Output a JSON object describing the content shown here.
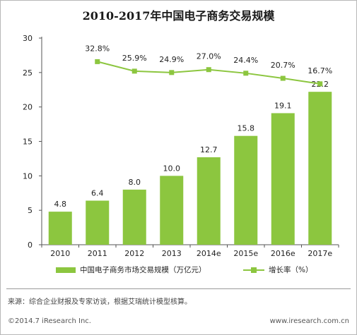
{
  "title": "2010-2017年中国电子商务交易规模",
  "source": "来源：综合企业财报及专家访谈，根据艾瑞统计模型核算。",
  "copyright": "©2014.7 iResearch Inc.",
  "website": "www.iresearch.com.cn",
  "colors": {
    "accent": "#8cc63f",
    "axis": "#555555"
  },
  "chart_data": {
    "type": "bar",
    "title": "2010-2017年中国电子商务交易规模",
    "categories": [
      "2010",
      "2011",
      "2012",
      "2013",
      "2014e",
      "2015e",
      "2016e",
      "2017e"
    ],
    "ylim": [
      0,
      30
    ],
    "yticks": [
      "0",
      "5",
      "10",
      "15",
      "20",
      "25",
      "30"
    ],
    "grid": false,
    "legend_position": "bottom",
    "series": [
      {
        "name": "中国电子商务市场交易规模（万亿元）",
        "type": "bar",
        "values": [
          4.8,
          6.4,
          8.0,
          10.0,
          12.7,
          15.8,
          19.1,
          22.2
        ],
        "labels": [
          "4.8",
          "6.4",
          "8.0",
          "10.0",
          "12.7",
          "15.8",
          "19.1",
          "22.2"
        ]
      },
      {
        "name": "增长率（%）",
        "type": "line",
        "values": [
          null,
          32.8,
          25.9,
          24.9,
          27.0,
          24.4,
          20.7,
          16.7
        ],
        "labels": [
          "",
          "32.8%",
          "25.9%",
          "24.9%",
          "27.0%",
          "24.4%",
          "20.7%",
          "16.7%"
        ]
      }
    ]
  }
}
